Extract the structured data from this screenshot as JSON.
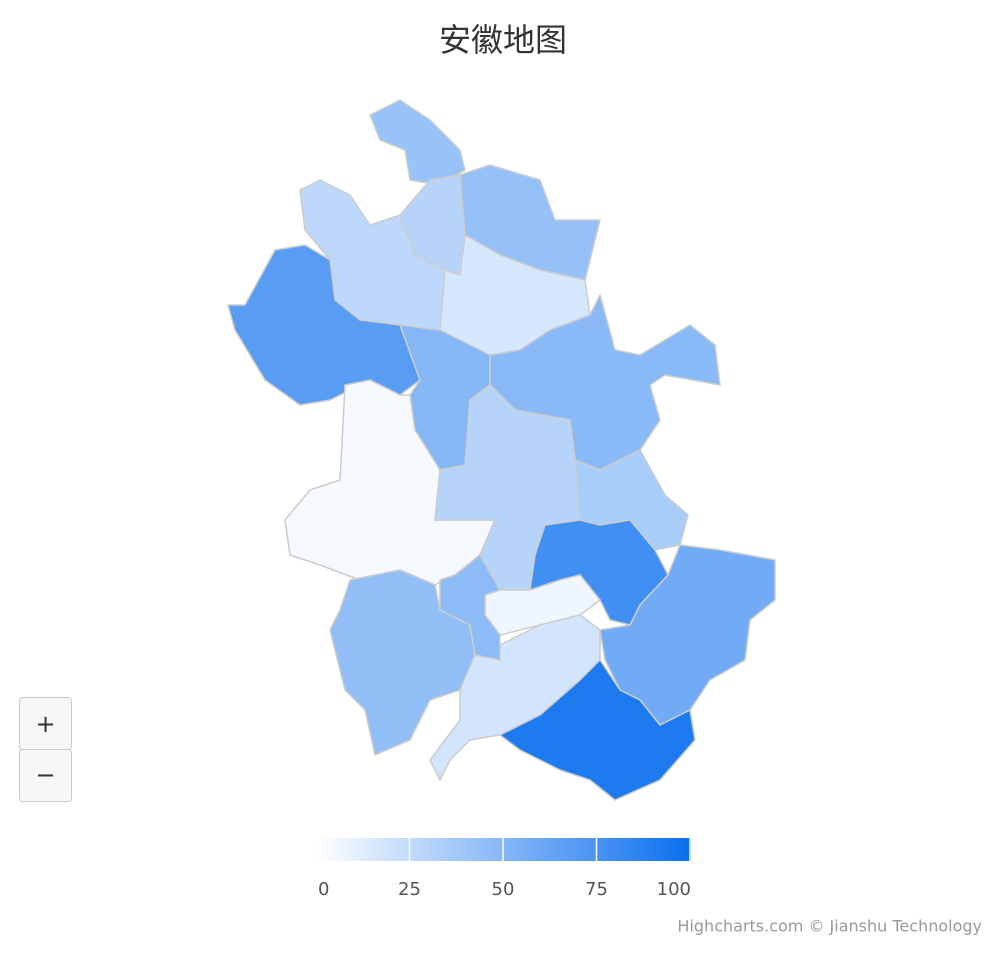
{
  "chart_data": {
    "type": "map",
    "title": "安徽地图",
    "categories": [
      null,
      null,
      null,
      null,
      null,
      null,
      null,
      null,
      null,
      null,
      null,
      null,
      null,
      null,
      null,
      null,
      null,
      null
    ],
    "values": [
      42,
      27,
      30,
      43,
      17,
      68,
      50,
      48,
      4,
      30,
      35,
      78,
      58,
      6,
      45,
      18,
      92,
      47
    ],
    "colorlim": [
      0,
      100
    ],
    "colorticks": [
      0,
      25,
      50,
      75,
      100
    ],
    "min_color": "#ffffff",
    "max_color": "#0a6fee",
    "border_color": "#cccccc",
    "zoom_buttons": [
      "+",
      "−"
    ],
    "credits": "Highcharts.com © Jianshu Technology"
  }
}
